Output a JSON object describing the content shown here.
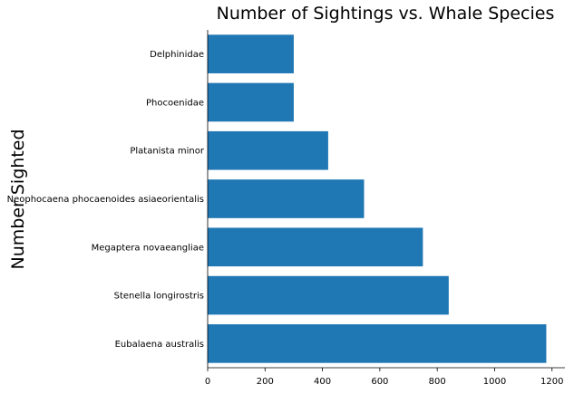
{
  "chart_data": {
    "type": "bar",
    "orientation": "horizontal",
    "title": "Number of Sightings vs. Whale Species",
    "xlabel": "",
    "ylabel": "Number Sighted",
    "categories": [
      "Eubalaena australis",
      "Stenella longirostris",
      "Megaptera novaeangliae",
      "Neophocaena phocaenoides asiaeorientalis",
      "Platanista minor",
      "Phocoenidae",
      "Delphinidae"
    ],
    "values": [
      1180,
      840,
      750,
      545,
      420,
      300,
      300
    ],
    "xlim": [
      0,
      1245
    ],
    "xticks": [
      0,
      200,
      400,
      600,
      800,
      1000,
      1200
    ],
    "bar_color": "#1f77b4",
    "grid": false
  }
}
